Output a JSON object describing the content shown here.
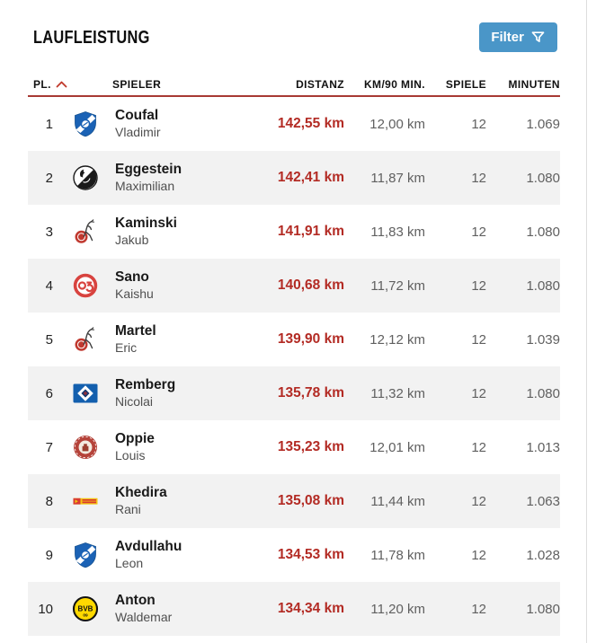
{
  "page": {
    "title": "LAUFLEISTUNG"
  },
  "filter": {
    "label": "Filter",
    "icon": "funnel-icon"
  },
  "colors": {
    "accent_red": "#b32b24",
    "line_red": "#a83a34",
    "filter_blue": "#4a96c8",
    "zebra": "#f2f2f2",
    "value_gray": "#606060",
    "name_black": "#1a1a1a",
    "first_gray": "#4f4f4f",
    "header_black": "#111111"
  },
  "table": {
    "columns": [
      {
        "key": "pl",
        "label": "PL."
      },
      {
        "key": "spieler",
        "label": "SPIELER"
      },
      {
        "key": "distanz",
        "label": "DISTANZ"
      },
      {
        "key": "km90",
        "label": "KM/90 MIN."
      },
      {
        "key": "spiele",
        "label": "SPIELE"
      },
      {
        "key": "minuten",
        "label": "MINUTEN"
      }
    ],
    "sort": {
      "column": "PL.",
      "direction": "asc",
      "icon": "sort-asc-icon"
    },
    "rows": [
      {
        "rank": "1",
        "club": "hoffenheim",
        "club_icon": "tsg-hoffenheim-badge-icon",
        "last": "Coufal",
        "first": "Vladimir",
        "distanz": "142,55 km",
        "km90": "12,00 km",
        "spiele": "12",
        "minuten": "1.069"
      },
      {
        "rank": "2",
        "club": "freiburg",
        "club_icon": "sc-freiburg-badge-icon",
        "last": "Eggestein",
        "first": "Maximilian",
        "distanz": "142,41 km",
        "km90": "11,87 km",
        "spiele": "12",
        "minuten": "1.080"
      },
      {
        "rank": "3",
        "club": "koeln",
        "club_icon": "fc-koeln-badge-icon",
        "last": "Kaminski",
        "first": "Jakub",
        "distanz": "141,91 km",
        "km90": "11,83 km",
        "spiele": "12",
        "minuten": "1.080"
      },
      {
        "rank": "4",
        "club": "mainz",
        "club_icon": "mainz-05-badge-icon",
        "last": "Sano",
        "first": "Kaishu",
        "distanz": "140,68 km",
        "km90": "11,72 km",
        "spiele": "12",
        "minuten": "1.080"
      },
      {
        "rank": "5",
        "club": "koeln",
        "club_icon": "fc-koeln-badge-icon",
        "last": "Martel",
        "first": "Eric",
        "distanz": "139,90 km",
        "km90": "12,12 km",
        "spiele": "12",
        "minuten": "1.039"
      },
      {
        "rank": "6",
        "club": "hsv",
        "club_icon": "hamburger-sv-badge-icon",
        "last": "Remberg",
        "first": "Nicolai",
        "distanz": "135,78 km",
        "km90": "11,32 km",
        "spiele": "12",
        "minuten": "1.080"
      },
      {
        "rank": "7",
        "club": "stpauli",
        "club_icon": "st-pauli-badge-icon",
        "last": "Oppie",
        "first": "Louis",
        "distanz": "135,23 km",
        "km90": "12,01 km",
        "spiele": "12",
        "minuten": "1.013"
      },
      {
        "rank": "8",
        "club": "union",
        "club_icon": "union-berlin-badge-icon",
        "last": "Khedira",
        "first": "Rani",
        "distanz": "135,08 km",
        "km90": "11,44 km",
        "spiele": "12",
        "minuten": "1.063"
      },
      {
        "rank": "9",
        "club": "hoffenheim",
        "club_icon": "tsg-hoffenheim-badge-icon",
        "last": "Avdullahu",
        "first": "Leon",
        "distanz": "134,53 km",
        "km90": "11,78 km",
        "spiele": "12",
        "minuten": "1.028"
      },
      {
        "rank": "10",
        "club": "dortmund",
        "club_icon": "borussia-dortmund-badge-icon",
        "last": "Anton",
        "first": "Waldemar",
        "distanz": "134,34 km",
        "km90": "11,20 km",
        "spiele": "12",
        "minuten": "1.080"
      }
    ]
  }
}
